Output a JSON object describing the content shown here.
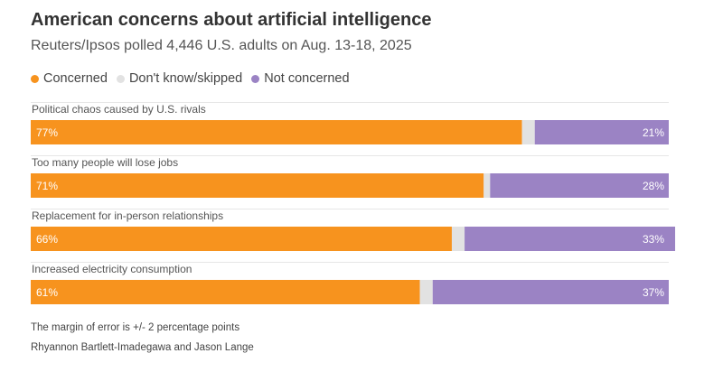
{
  "title": "American concerns about artificial intelligence",
  "subtitle": "Reuters/Ipsos polled 4,446 U.S. adults on Aug. 13-18, 2025",
  "footnote": "The margin of error is +/- 2 percentage points",
  "credit": "Rhyannon Bartlett-Imadegawa and Jason Lange",
  "colors": {
    "concerned": "#f7931e",
    "dont_know": "#e2e2e2",
    "not_concerned": "#9b83c4",
    "separator": "#e6e6e6"
  },
  "chart_data": {
    "type": "bar",
    "orientation": "horizontal",
    "stacked": true,
    "legend_position": "top-left",
    "categories": [
      "Political chaos caused by U.S. rivals",
      "Too many people will lose jobs",
      "Replacement for in-person relationships",
      "Increased electricity consumption"
    ],
    "series": [
      {
        "name": "Concerned",
        "values": [
          77,
          71,
          66,
          61
        ],
        "color": "#f7931e"
      },
      {
        "name": "Don't know/skipped",
        "values": [
          2,
          1,
          2,
          2
        ],
        "color": "#e2e2e2"
      },
      {
        "name": "Not concerned",
        "values": [
          21,
          28,
          33,
          37
        ],
        "color": "#9b83c4"
      }
    ],
    "value_labels": {
      "concerned": [
        "77%",
        "71%",
        "66%",
        "61%"
      ],
      "not_concerned": [
        "21%",
        "28%",
        "33%",
        "37%"
      ]
    },
    "xlim": [
      0,
      100
    ]
  }
}
